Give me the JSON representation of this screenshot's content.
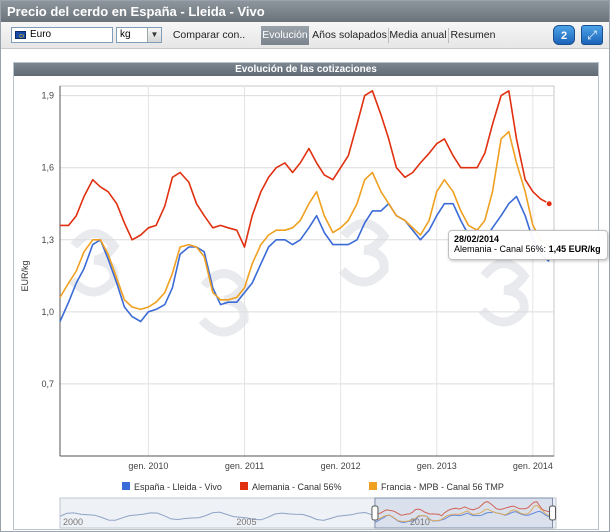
{
  "window": {
    "title": "Precio del cerdo en España - Lleida - Vivo"
  },
  "toolbar": {
    "currency": "Euro",
    "unit": "kg",
    "unit_arrow": "▼",
    "compare_label": "Comparar con..",
    "tabs": [
      {
        "label": "Evolución",
        "active": true
      },
      {
        "label": "Años solapados",
        "active": false
      },
      {
        "label": "Media anual",
        "active": false
      },
      {
        "label": "Resumen",
        "active": false
      }
    ],
    "help_label": "2",
    "expand_icon": "expand-icon",
    "help_icon": "help-bubble-icon"
  },
  "chart_header": "Evolución de las cotizaciones",
  "tooltip": {
    "date": "28/02/2014",
    "series": "Alemania - Canal 56%: ",
    "value": "1,45 EUR/kg"
  },
  "navigator": {
    "labels": [
      "2000",
      "2005",
      "2010"
    ]
  },
  "chart_data": {
    "type": "line",
    "ylabel": "EUR/kg",
    "yticks": [
      "0,7",
      "1,0",
      "1,3",
      "1,6",
      "1,9"
    ],
    "ytick_values": [
      0.7,
      1.0,
      1.3,
      1.6,
      1.9
    ],
    "ylim": [
      0.4,
      1.94
    ],
    "xticks": [
      "gen. 2010",
      "gen. 2011",
      "gen. 2012",
      "gen. 2013",
      "gen. 2014"
    ],
    "xtick_values": [
      2010.0,
      2011.0,
      2012.0,
      2013.0,
      2014.0
    ],
    "xlim": [
      2009.08,
      2014.22
    ],
    "grid": true,
    "legend_placement": "bottom",
    "series": [
      {
        "name": "España - Lleida - Vivo",
        "color": "#3b6bd6",
        "x": [
          2009.08,
          2009.17,
          2009.25,
          2009.33,
          2009.42,
          2009.5,
          2009.58,
          2009.67,
          2009.75,
          2009.83,
          2009.92,
          2010.0,
          2010.08,
          2010.17,
          2010.25,
          2010.33,
          2010.42,
          2010.5,
          2010.58,
          2010.67,
          2010.75,
          2010.83,
          2010.92,
          2011.0,
          2011.08,
          2011.17,
          2011.25,
          2011.33,
          2011.42,
          2011.5,
          2011.58,
          2011.67,
          2011.75,
          2011.83,
          2011.92,
          2012.0,
          2012.08,
          2012.17,
          2012.25,
          2012.33,
          2012.42,
          2012.5,
          2012.58,
          2012.67,
          2012.75,
          2012.83,
          2012.92,
          2013.0,
          2013.08,
          2013.17,
          2013.25,
          2013.33,
          2013.42,
          2013.5,
          2013.58,
          2013.67,
          2013.75,
          2013.83,
          2013.92,
          2014.0,
          2014.08,
          2014.17
        ],
        "values": [
          0.96,
          1.04,
          1.12,
          1.18,
          1.28,
          1.3,
          1.22,
          1.12,
          1.02,
          0.98,
          0.96,
          1.0,
          1.01,
          1.03,
          1.1,
          1.24,
          1.27,
          1.27,
          1.25,
          1.1,
          1.03,
          1.04,
          1.04,
          1.08,
          1.12,
          1.2,
          1.27,
          1.3,
          1.3,
          1.28,
          1.3,
          1.35,
          1.4,
          1.33,
          1.28,
          1.28,
          1.28,
          1.3,
          1.37,
          1.42,
          1.42,
          1.45,
          1.4,
          1.38,
          1.34,
          1.3,
          1.34,
          1.4,
          1.45,
          1.45,
          1.38,
          1.32,
          1.3,
          1.3,
          1.35,
          1.4,
          1.45,
          1.48,
          1.4,
          1.3,
          1.24,
          1.21
        ]
      },
      {
        "name": "Alemania - Canal 56%",
        "color": "#e03010",
        "x": [
          2009.08,
          2009.17,
          2009.25,
          2009.33,
          2009.42,
          2009.5,
          2009.58,
          2009.67,
          2009.75,
          2009.83,
          2009.92,
          2010.0,
          2010.08,
          2010.17,
          2010.25,
          2010.33,
          2010.42,
          2010.5,
          2010.58,
          2010.67,
          2010.75,
          2010.83,
          2010.92,
          2011.0,
          2011.08,
          2011.17,
          2011.25,
          2011.33,
          2011.42,
          2011.5,
          2011.58,
          2011.67,
          2011.75,
          2011.83,
          2011.92,
          2012.0,
          2012.08,
          2012.17,
          2012.25,
          2012.33,
          2012.42,
          2012.5,
          2012.58,
          2012.67,
          2012.75,
          2012.83,
          2012.92,
          2013.0,
          2013.08,
          2013.17,
          2013.25,
          2013.33,
          2013.42,
          2013.5,
          2013.58,
          2013.67,
          2013.75,
          2013.83,
          2013.92,
          2014.0,
          2014.08,
          2014.17
        ],
        "values": [
          1.36,
          1.36,
          1.4,
          1.48,
          1.55,
          1.52,
          1.5,
          1.45,
          1.37,
          1.3,
          1.32,
          1.35,
          1.36,
          1.44,
          1.56,
          1.58,
          1.54,
          1.45,
          1.4,
          1.35,
          1.36,
          1.35,
          1.34,
          1.27,
          1.4,
          1.5,
          1.56,
          1.6,
          1.62,
          1.58,
          1.62,
          1.68,
          1.62,
          1.57,
          1.55,
          1.6,
          1.65,
          1.78,
          1.9,
          1.92,
          1.82,
          1.72,
          1.6,
          1.56,
          1.58,
          1.62,
          1.66,
          1.7,
          1.72,
          1.65,
          1.6,
          1.6,
          1.6,
          1.66,
          1.78,
          1.9,
          1.92,
          1.72,
          1.55,
          1.5,
          1.47,
          1.45
        ]
      },
      {
        "name": "Francia - MPB - Canal 56 TMP",
        "color": "#f0a020",
        "x": [
          2009.08,
          2009.17,
          2009.25,
          2009.33,
          2009.42,
          2009.5,
          2009.58,
          2009.67,
          2009.75,
          2009.83,
          2009.92,
          2010.0,
          2010.08,
          2010.17,
          2010.25,
          2010.33,
          2010.42,
          2010.5,
          2010.58,
          2010.67,
          2010.75,
          2010.83,
          2010.92,
          2011.0,
          2011.08,
          2011.17,
          2011.25,
          2011.33,
          2011.42,
          2011.5,
          2011.58,
          2011.67,
          2011.75,
          2011.83,
          2011.92,
          2012.0,
          2012.08,
          2012.17,
          2012.25,
          2012.33,
          2012.42,
          2012.5,
          2012.58,
          2012.67,
          2012.75,
          2012.83,
          2012.92,
          2013.0,
          2013.08,
          2013.17,
          2013.25,
          2013.33,
          2013.42,
          2013.5,
          2013.58,
          2013.67,
          2013.75,
          2013.83,
          2013.92,
          2014.0,
          2014.08,
          2014.17
        ],
        "values": [
          1.06,
          1.12,
          1.17,
          1.25,
          1.3,
          1.3,
          1.24,
          1.14,
          1.05,
          1.02,
          1.01,
          1.02,
          1.04,
          1.08,
          1.16,
          1.27,
          1.28,
          1.27,
          1.23,
          1.08,
          1.05,
          1.05,
          1.06,
          1.1,
          1.2,
          1.28,
          1.32,
          1.34,
          1.34,
          1.35,
          1.38,
          1.45,
          1.5,
          1.4,
          1.33,
          1.35,
          1.38,
          1.45,
          1.55,
          1.58,
          1.5,
          1.45,
          1.4,
          1.38,
          1.35,
          1.32,
          1.38,
          1.5,
          1.55,
          1.5,
          1.42,
          1.36,
          1.34,
          1.38,
          1.5,
          1.72,
          1.75,
          1.62,
          1.5,
          1.36,
          1.3,
          1.27
        ]
      }
    ]
  }
}
